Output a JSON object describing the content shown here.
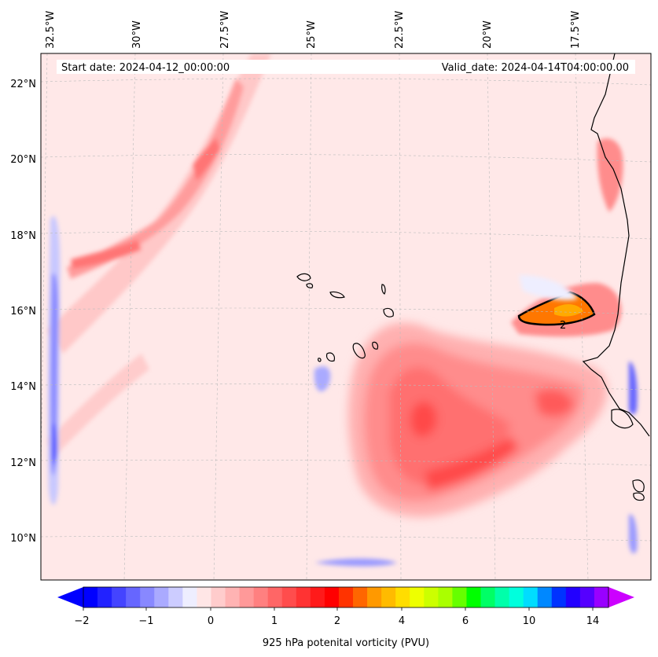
{
  "header": {
    "start_date": "Start date: 2024-04-12_00:00:00",
    "valid_date": "Valid_date: 2024-04-14T04:00:00.00"
  },
  "map": {
    "lon_labels": [
      "32.5°W",
      "30°W",
      "27.5°W",
      "25°W",
      "22.5°W",
      "20°W",
      "17.5°W"
    ],
    "lat_labels": [
      "22°N",
      "20°N",
      "18°N",
      "16°N",
      "14°N",
      "12°N",
      "10°N"
    ],
    "contour_label": "2"
  },
  "colorbar": {
    "ticks": [
      "−2",
      "−1",
      "0",
      "1",
      "2",
      "4",
      "6",
      "10",
      "14"
    ],
    "label": "925 hPa potenital vorticity (PVU)",
    "colors": [
      "#0000ff",
      "#2222ff",
      "#4444ff",
      "#6666ff",
      "#8888ff",
      "#aaaaff",
      "#ccccff",
      "#eeeeff",
      "#ffe6e6",
      "#ffcccc",
      "#ffb3b3",
      "#ff9999",
      "#ff8080",
      "#ff6666",
      "#ff4d4d",
      "#ff3333",
      "#ff1a1a",
      "#ff0000",
      "#ff3300",
      "#ff6600",
      "#ff9900",
      "#ffbb00",
      "#ffdd00",
      "#eeff00",
      "#ccff00",
      "#aaff00",
      "#66ff00",
      "#00ff00",
      "#00ff66",
      "#00ffaa",
      "#00ffdd",
      "#00ddff",
      "#0088ff",
      "#0033ff",
      "#2200ff",
      "#5500ff",
      "#9900ff"
    ],
    "under_color": "#0000ff",
    "over_color": "#cc00ff"
  }
}
